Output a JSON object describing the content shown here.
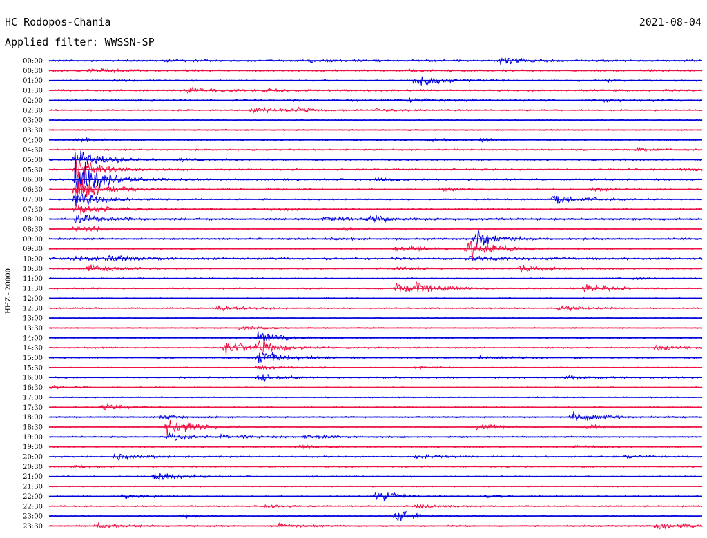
{
  "header": {
    "station": "HC Rodopos-Chania",
    "filter": "Applied filter: WWSSN-SP",
    "date": "2021-08-04"
  },
  "chart_data": {
    "type": "line",
    "title": "HC Rodopos-Chania",
    "subtitle": "Applied filter: WWSSN-SP",
    "date": "2021-08-04",
    "ylabel": "HHZ - 20000",
    "xlabel": "",
    "grid": false,
    "legend": "none",
    "colors": [
      "#0000dd",
      "#ee1144"
    ],
    "series": [
      {
        "name": "trace-blue",
        "color": "#0000dd"
      },
      {
        "name": "trace-red",
        "color": "#ee1144"
      }
    ],
    "rows": [
      {
        "label": "00:00",
        "color": "#0000dd",
        "noise": 1.2,
        "events": [
          [
            0.4,
            0.8
          ],
          [
            0.69,
            2.0
          ],
          [
            0.18,
            0.5
          ]
        ]
      },
      {
        "label": "00:30",
        "color": "#ee1144",
        "noise": 1.2,
        "events": [
          [
            0.06,
            1.2
          ],
          [
            0.55,
            0.4
          ]
        ]
      },
      {
        "label": "01:00",
        "color": "#0000dd",
        "noise": 1.0,
        "events": [
          [
            0.56,
            3.2
          ],
          [
            0.1,
            0.4
          ],
          [
            0.85,
            0.5
          ]
        ]
      },
      {
        "label": "01:30",
        "color": "#ee1144",
        "noise": 1.2,
        "events": [
          [
            0.21,
            1.5
          ],
          [
            0.33,
            0.6
          ]
        ]
      },
      {
        "label": "02:00",
        "color": "#0000dd",
        "noise": 1.4,
        "events": [
          [
            0.55,
            0.8
          ],
          [
            0.85,
            0.6
          ]
        ]
      },
      {
        "label": "02:30",
        "color": "#ee1144",
        "noise": 1.0,
        "events": [
          [
            0.31,
            1.3
          ],
          [
            0.37,
            1.0
          ],
          [
            0.5,
            0.5
          ]
        ]
      },
      {
        "label": "03:00",
        "color": "#0000dd",
        "noise": 0.9,
        "events": []
      },
      {
        "label": "03:30",
        "color": "#ee1144",
        "noise": 0.9,
        "events": []
      },
      {
        "label": "04:00",
        "color": "#0000dd",
        "noise": 1.0,
        "events": [
          [
            0.04,
            1.0
          ],
          [
            0.58,
            0.6
          ],
          [
            0.66,
            0.7
          ]
        ]
      },
      {
        "label": "04:30",
        "color": "#ee1144",
        "noise": 1.0,
        "events": [
          [
            0.9,
            1.0
          ]
        ]
      },
      {
        "label": "05:00",
        "color": "#0000dd",
        "noise": 1.1,
        "events": [
          [
            0.04,
            6.0
          ],
          [
            0.2,
            0.7
          ]
        ]
      },
      {
        "label": "05:30",
        "color": "#ee1144",
        "noise": 1.1,
        "events": [
          [
            0.04,
            7.0
          ],
          [
            0.97,
            1.0
          ]
        ]
      },
      {
        "label": "06:00",
        "color": "#0000dd",
        "noise": 1.2,
        "events": [
          [
            0.04,
            12.0
          ],
          [
            0.5,
            0.6
          ]
        ]
      },
      {
        "label": "06:30",
        "color": "#ee1144",
        "noise": 1.0,
        "events": [
          [
            0.04,
            7.0
          ],
          [
            0.6,
            0.8
          ],
          [
            0.83,
            0.8
          ]
        ]
      },
      {
        "label": "07:00",
        "color": "#0000dd",
        "noise": 1.0,
        "events": [
          [
            0.04,
            5.0
          ],
          [
            0.77,
            3.0
          ]
        ]
      },
      {
        "label": "07:30",
        "color": "#ee1144",
        "noise": 1.1,
        "events": [
          [
            0.04,
            3.0
          ],
          [
            0.34,
            0.6
          ]
        ]
      },
      {
        "label": "08:00",
        "color": "#0000dd",
        "noise": 1.4,
        "events": [
          [
            0.04,
            3.0
          ],
          [
            0.42,
            1.2
          ],
          [
            0.49,
            1.6
          ]
        ]
      },
      {
        "label": "08:30",
        "color": "#ee1144",
        "noise": 1.0,
        "events": [
          [
            0.04,
            2.0
          ],
          [
            0.45,
            0.6
          ]
        ]
      },
      {
        "label": "09:00",
        "color": "#0000dd",
        "noise": 1.2,
        "events": [
          [
            0.65,
            4.0
          ],
          [
            0.42,
            0.6
          ]
        ]
      },
      {
        "label": "09:30",
        "color": "#ee1144",
        "noise": 1.0,
        "events": [
          [
            0.53,
            2.2
          ],
          [
            0.64,
            6.0
          ]
        ]
      },
      {
        "label": "10:00",
        "color": "#0000dd",
        "noise": 1.5,
        "events": [
          [
            0.04,
            1.2
          ],
          [
            0.09,
            1.6
          ],
          [
            0.64,
            1.5
          ]
        ]
      },
      {
        "label": "10:30",
        "color": "#ee1144",
        "noise": 1.0,
        "events": [
          [
            0.06,
            2.5
          ],
          [
            0.53,
            0.8
          ],
          [
            0.72,
            1.8
          ]
        ]
      },
      {
        "label": "11:00",
        "color": "#0000dd",
        "noise": 0.9,
        "events": [
          [
            0.89,
            0.7
          ]
        ]
      },
      {
        "label": "11:30",
        "color": "#ee1144",
        "noise": 1.0,
        "events": [
          [
            0.53,
            2.8
          ],
          [
            0.56,
            2.0
          ],
          [
            0.82,
            2.2
          ]
        ]
      },
      {
        "label": "12:00",
        "color": "#0000dd",
        "noise": 0.8,
        "events": []
      },
      {
        "label": "12:30",
        "color": "#ee1144",
        "noise": 0.9,
        "events": [
          [
            0.26,
            1.4
          ],
          [
            0.78,
            1.2
          ]
        ]
      },
      {
        "label": "13:00",
        "color": "#0000dd",
        "noise": 0.8,
        "events": []
      },
      {
        "label": "13:30",
        "color": "#ee1144",
        "noise": 0.8,
        "events": [
          [
            0.29,
            1.0
          ]
        ]
      },
      {
        "label": "14:00",
        "color": "#0000dd",
        "noise": 0.9,
        "events": [
          [
            0.32,
            3.0
          ],
          [
            0.55,
            0.5
          ]
        ]
      },
      {
        "label": "14:30",
        "color": "#ee1144",
        "noise": 0.9,
        "events": [
          [
            0.27,
            4.0
          ],
          [
            0.32,
            3.0
          ],
          [
            0.93,
            1.5
          ]
        ]
      },
      {
        "label": "15:00",
        "color": "#0000dd",
        "noise": 1.0,
        "events": [
          [
            0.32,
            4.0
          ],
          [
            0.66,
            0.6
          ]
        ]
      },
      {
        "label": "15:30",
        "color": "#ee1144",
        "noise": 0.8,
        "events": [
          [
            0.32,
            1.5
          ],
          [
            0.56,
            0.5
          ]
        ]
      },
      {
        "label": "16:00",
        "color": "#0000dd",
        "noise": 1.0,
        "events": [
          [
            0.32,
            2.0
          ],
          [
            0.79,
            0.8
          ]
        ]
      },
      {
        "label": "16:30",
        "color": "#ee1144",
        "noise": 0.8,
        "events": [
          [
            0.0,
            0.8
          ]
        ]
      },
      {
        "label": "17:00",
        "color": "#0000dd",
        "noise": 0.8,
        "events": []
      },
      {
        "label": "17:30",
        "color": "#ee1144",
        "noise": 0.9,
        "events": [
          [
            0.08,
            1.5
          ]
        ]
      },
      {
        "label": "18:00",
        "color": "#0000dd",
        "noise": 1.0,
        "events": [
          [
            0.17,
            0.8
          ],
          [
            0.8,
            3.0
          ]
        ]
      },
      {
        "label": "18:30",
        "color": "#ee1144",
        "noise": 1.0,
        "events": [
          [
            0.18,
            5.5
          ],
          [
            0.65,
            1.8
          ],
          [
            0.82,
            1.4
          ]
        ]
      },
      {
        "label": "19:00",
        "color": "#0000dd",
        "noise": 1.0,
        "events": [
          [
            0.18,
            2.0
          ],
          [
            0.26,
            1.2
          ],
          [
            0.39,
            1.0
          ]
        ]
      },
      {
        "label": "19:30",
        "color": "#ee1144",
        "noise": 1.0,
        "events": [
          [
            0.38,
            0.8
          ],
          [
            0.8,
            0.8
          ]
        ]
      },
      {
        "label": "20:00",
        "color": "#0000dd",
        "noise": 1.0,
        "events": [
          [
            0.1,
            1.4
          ],
          [
            0.56,
            0.8
          ],
          [
            0.88,
            0.8
          ]
        ]
      },
      {
        "label": "20:30",
        "color": "#ee1144",
        "noise": 1.0,
        "events": [
          [
            0.04,
            0.8
          ]
        ]
      },
      {
        "label": "21:00",
        "color": "#0000dd",
        "noise": 0.9,
        "events": [
          [
            0.16,
            2.2
          ]
        ]
      },
      {
        "label": "21:30",
        "color": "#ee1144",
        "noise": 0.8,
        "events": []
      },
      {
        "label": "22:00",
        "color": "#0000dd",
        "noise": 0.9,
        "events": [
          [
            0.11,
            1.0
          ],
          [
            0.5,
            2.5
          ],
          [
            0.67,
            0.5
          ]
        ]
      },
      {
        "label": "22:30",
        "color": "#ee1144",
        "noise": 0.9,
        "events": [
          [
            0.33,
            0.8
          ],
          [
            0.56,
            1.2
          ]
        ]
      },
      {
        "label": "23:00",
        "color": "#0000dd",
        "noise": 0.9,
        "events": [
          [
            0.2,
            0.8
          ],
          [
            0.53,
            3.0
          ]
        ]
      },
      {
        "label": "23:30",
        "color": "#ee1144",
        "noise": 1.0,
        "events": [
          [
            0.07,
            1.2
          ],
          [
            0.35,
            1.2
          ],
          [
            0.93,
            2.0
          ]
        ]
      }
    ]
  }
}
